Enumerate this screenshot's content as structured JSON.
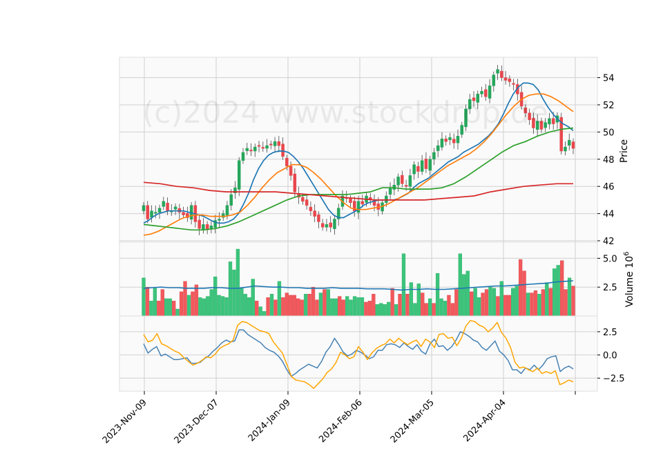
{
  "chart_data": {
    "type": "candlestick",
    "watermark": "(c)2024 www.stockdrop.de",
    "x_tick_labels": [
      "2023-Nov-09",
      "2023-Dec-07",
      "2024-Jan-09",
      "2024-Feb-06",
      "2024-Mar-05",
      "2024-Apr-04"
    ],
    "price_panel": {
      "ylabel": "Price",
      "ylim": [
        41.9,
        55.5
      ],
      "yticks": [
        42,
        44,
        46,
        48,
        50,
        52,
        54
      ],
      "candles_close": [
        44.6,
        43.6,
        44.2,
        44.1,
        44.4,
        44.9,
        44.2,
        44.2,
        44.5,
        44.1,
        43.9,
        43.7,
        44.6,
        43.4,
        42.9,
        43.2,
        42.8,
        43.1,
        43.5,
        43.6,
        44.0,
        44.6,
        45.4,
        45.9,
        47.9,
        48.5,
        48.8,
        48.6,
        48.9,
        49.0,
        48.8,
        49.0,
        49.1,
        49.3,
        49.0,
        48.2,
        47.5,
        46.8,
        45.6,
        45.2,
        44.9,
        44.6,
        44.2,
        43.8,
        43.4,
        43.0,
        43.2,
        43.0,
        43.6,
        44.4,
        45.3,
        45.1,
        44.8,
        44.2,
        44.9,
        44.7,
        45.3,
        45.0,
        44.6,
        44.3,
        44.8,
        45.3,
        45.9,
        46.1,
        46.7,
        46.2,
        46.0,
        46.8,
        47.6,
        47.1,
        47.9,
        47.3,
        48.0,
        48.5,
        49.0,
        49.5,
        49.3,
        49.6,
        49.2,
        49.7,
        50.5,
        51.7,
        52.4,
        52.3,
        52.8,
        53.0,
        52.6,
        53.4,
        54.2,
        54.6,
        54.0,
        53.8,
        53.7,
        53.5,
        52.8,
        51.9,
        51.4,
        50.9,
        50.3,
        50.8,
        50.2,
        50.7,
        51.0,
        50.6,
        51.2,
        48.6,
        48.9,
        49.4,
        48.8
      ],
      "ma_series": [
        {
          "color": "#1f77b4",
          "values": [
            43.3,
            43.5,
            43.8,
            44.0,
            44.1,
            44.2,
            44.2,
            44.2,
            44.2,
            44.1,
            44.0,
            43.9,
            43.8,
            43.6,
            43.4,
            43.3,
            43.3,
            43.4,
            43.6,
            44.0,
            44.7,
            45.5,
            46.5,
            47.3,
            47.9,
            48.3,
            48.5,
            48.6,
            48.6,
            48.5,
            48.2,
            47.8,
            47.3,
            46.7,
            46.1,
            45.5,
            44.9,
            44.3,
            43.9,
            43.7,
            43.7,
            43.9,
            44.1,
            44.3,
            44.6,
            44.8,
            44.9,
            45.0,
            45.0,
            45.0,
            45.0,
            45.1,
            45.3,
            45.5,
            45.9,
            46.2,
            46.4,
            46.6,
            46.9,
            47.2,
            47.5,
            47.8,
            48.0,
            48.2,
            48.5,
            48.7,
            48.9,
            49.1,
            49.4,
            49.7,
            50.1,
            50.6,
            51.3,
            52.1,
            52.8,
            53.3,
            53.6,
            53.6,
            53.5,
            53.1,
            52.4,
            51.8,
            51.3,
            50.9,
            50.6,
            50.4,
            50.1
          ]
        },
        {
          "color": "#ff7f0e",
          "values": [
            42.4,
            42.5,
            42.7,
            43.0,
            43.3,
            43.6,
            43.8,
            43.9,
            43.9,
            43.8,
            43.8,
            43.8,
            43.9,
            44.1,
            44.6,
            45.2,
            45.9,
            46.5,
            47.0,
            47.3,
            47.6,
            47.6,
            47.4,
            47.0,
            46.5,
            45.9,
            45.3,
            44.8,
            44.4,
            44.3,
            44.3,
            44.4,
            44.5,
            44.7,
            45.0,
            45.3,
            45.6,
            45.9,
            46.3,
            46.7,
            47.1,
            47.5,
            47.8,
            48.1,
            48.4,
            48.8,
            49.3,
            49.9,
            50.6,
            51.3,
            51.9,
            52.4,
            52.7,
            52.8,
            52.8,
            52.6,
            52.3,
            51.9,
            51.5
          ]
        },
        {
          "color": "#2ca02c",
          "values": [
            43.2,
            43.1,
            43.0,
            42.9,
            42.8,
            42.8,
            42.9,
            43.1,
            43.4,
            43.8,
            44.2,
            44.6,
            45.0,
            45.3,
            45.4,
            45.4,
            45.4,
            45.4,
            45.5,
            45.6,
            45.9,
            45.9,
            45.8,
            45.8,
            45.8,
            45.9,
            46.2,
            46.7,
            47.3,
            47.9,
            48.5,
            49.0,
            49.3,
            49.7,
            50.0,
            50.2,
            50.3
          ]
        },
        {
          "color": "#d62728",
          "values": [
            46.3,
            46.2,
            46.0,
            45.9,
            45.7,
            45.6,
            45.6,
            45.6,
            45.6,
            45.5,
            45.4,
            45.3,
            45.2,
            45.1,
            45.0,
            45.0,
            45.0,
            45.0,
            45.1,
            45.2,
            45.3,
            45.6,
            45.8,
            46.0,
            46.1,
            46.2,
            46.2
          ]
        }
      ]
    },
    "volume_panel": {
      "ylabel": "Volume  10^6",
      "ylim": [
        0,
        6.4
      ],
      "yticks": [
        2.5,
        5.0
      ],
      "ytick_labels": [
        "2.5",
        "5.0"
      ],
      "values": [
        3.3,
        2.5,
        1.3,
        2.4,
        1.3,
        2.3,
        1.5,
        1.5,
        1.3,
        0.6,
        2.1,
        3.0,
        1.8,
        2.1,
        2.7,
        1.6,
        1.5,
        1.7,
        2.3,
        3.4,
        1.8,
        1.7,
        1.6,
        4.7,
        4.0,
        5.8,
        2.4,
        1.9,
        1.6,
        3.2,
        1.3,
        0.8,
        0.4,
        1.6,
        1.9,
        1.4,
        3.0,
        1.6,
        2.0,
        1.8,
        1.8,
        1.5,
        1.4,
        1.9,
        1.9,
        2.5,
        1.4,
        2.0,
        2.3,
        2.3,
        1.5,
        1.5,
        1.7,
        1.4,
        1.7,
        1.4,
        1.7,
        1.6,
        1.6,
        1.2,
        1.3,
        1.9,
        1.0,
        1.1,
        1.0,
        1.2,
        2.4,
        1.0,
        1.9,
        5.4,
        1.9,
        2.9,
        1.1,
        2.8,
        2.0,
        1.1,
        1.5,
        1.1,
        3.7,
        1.5,
        1.3,
        1.8,
        1.1,
        2.3,
        5.4,
        3.6,
        3.9,
        2.1,
        2.4,
        1.6,
        2.0,
        2.3,
        2.5,
        2.4,
        1.7,
        3.0,
        1.8,
        1.8,
        2.4,
        2.6,
        4.9,
        3.9,
        2.0,
        2.0,
        2.2,
        1.9,
        2.3,
        2.9,
        2.4,
        4.1,
        4.4,
        4.8,
        2.3,
        3.3,
        2.6
      ],
      "colors": [
        "g",
        "r",
        "g",
        "g",
        "r",
        "r",
        "g",
        "g",
        "r",
        "g",
        "r",
        "r",
        "g",
        "r",
        "r",
        "g",
        "g",
        "g",
        "g",
        "g",
        "g",
        "g",
        "g",
        "g",
        "g",
        "g",
        "g",
        "g",
        "g",
        "g",
        "r",
        "g",
        "g",
        "r",
        "g",
        "r",
        "g",
        "r",
        "r",
        "r",
        "r",
        "r",
        "r",
        "g",
        "r",
        "r",
        "r",
        "g",
        "r",
        "g",
        "g",
        "g",
        "r",
        "r",
        "g",
        "g",
        "g",
        "g",
        "g",
        "r",
        "r",
        "r",
        "g",
        "g",
        "g",
        "g",
        "r",
        "g",
        "r",
        "g",
        "r",
        "g",
        "g",
        "g",
        "r",
        "r",
        "g",
        "r",
        "g",
        "g",
        "g",
        "r",
        "r",
        "r",
        "g",
        "g",
        "g",
        "r",
        "g",
        "g",
        "r",
        "r",
        "g",
        "g",
        "r",
        "g",
        "r",
        "r",
        "g",
        "g",
        "r",
        "r",
        "g",
        "r",
        "r",
        "g",
        "r",
        "g",
        "r",
        "g",
        "g",
        "r",
        "r",
        "g",
        "r"
      ],
      "ma_line": [
        2.4,
        2.45,
        2.5,
        2.45,
        2.45,
        2.4,
        2.4,
        2.4,
        2.45,
        2.45,
        2.4,
        2.4,
        2.5,
        2.6,
        2.55,
        2.5,
        2.5,
        2.45,
        2.45,
        2.4,
        2.4,
        2.4,
        2.45,
        2.4,
        2.4,
        2.4,
        2.35,
        2.35,
        2.35,
        2.3,
        2.25,
        2.3,
        2.3,
        2.35,
        2.3,
        2.3,
        2.35,
        2.4,
        2.45,
        2.5,
        2.55,
        2.6,
        2.6,
        2.65,
        2.7,
        2.75,
        2.8,
        2.85,
        2.95,
        3.0,
        3.05
      ]
    },
    "oscillator_panel": {
      "ylim": [
        -3.9,
        4.2
      ],
      "yticks": [
        -2.5,
        0.0,
        2.5
      ],
      "ytick_labels": [
        "−2.5",
        "0.0",
        "2.5"
      ],
      "series": [
        {
          "color": "#4682b4",
          "values": [
            1.2,
            0.2,
            0.6,
            0.9,
            -0.1,
            0.1,
            -0.2,
            -0.5,
            -0.5,
            -0.4,
            -0.3,
            -0.9,
            -0.9,
            -0.8,
            -0.4,
            -0.1,
            0.4,
            0.8,
            1.3,
            1.6,
            1.4,
            1.5,
            2.7,
            2.7,
            2.2,
            1.9,
            1.6,
            1.3,
            0.8,
            0.5,
            0.3,
            -0.1,
            -0.7,
            -1.6,
            -2.3,
            -2.0,
            -1.6,
            -1.3,
            -1.0,
            -1.2,
            -1.4,
            -0.7,
            0.3,
            0.9,
            1.8,
            1.1,
            0.3,
            -0.1,
            0.1,
            0.5,
            0.3,
            0.0,
            -0.4,
            -0.2,
            0.5,
            0.5,
            1.1,
            1.2,
            1.1,
            0.8,
            1.3,
            0.9,
            0.6,
            1.1,
            0.4,
            0.1,
            1.2,
            1.7,
            0.9,
            1.0,
            0.5,
            0.9,
            1.6,
            2.5,
            2.3,
            2.0,
            1.6,
            1.4,
            0.8,
            0.5,
            1.0,
            1.5,
            0.4,
            0.0,
            -0.6,
            -1.6,
            -1.6,
            -2.0,
            -1.4,
            -1.6,
            -1.1,
            -1.6,
            -1.1,
            -0.4,
            -0.2,
            -0.1,
            -1.8,
            -1.4,
            -1.2,
            -1.5
          ]
        },
        {
          "color": "#ffa500",
          "values": [
            2.2,
            1.4,
            1.6,
            2.3,
            1.2,
            1.0,
            0.7,
            0.4,
            0.2,
            -0.3,
            -0.7,
            -1.1,
            -0.9,
            -0.6,
            -0.2,
            -0.3,
            0.1,
            0.7,
            1.0,
            1.2,
            1.6,
            3.2,
            3.6,
            3.5,
            3.2,
            2.9,
            2.6,
            2.5,
            2.3,
            1.4,
            0.8,
            0.2,
            -1.0,
            -2.3,
            -2.7,
            -2.8,
            -2.9,
            -3.2,
            -3.6,
            -3.1,
            -2.6,
            -1.9,
            -1.5,
            -0.8,
            0.3,
            0.0,
            -0.4,
            -0.2,
            0.9,
            0.3,
            -0.5,
            0.2,
            0.7,
            1.0,
            1.2,
            1.7,
            1.3,
            1.8,
            1.4,
            1.1,
            1.4,
            1.6,
            0.9,
            1.7,
            1.4,
            0.8,
            2.2,
            2.3,
            1.8,
            1.9,
            1.0,
            1.8,
            3.1,
            3.7,
            3.6,
            3.2,
            3.0,
            2.5,
            2.9,
            3.5,
            2.4,
            1.8,
            0.8,
            -0.8,
            -1.4,
            -1.3,
            -1.6,
            -1.8,
            -1.4,
            -2.0,
            -1.8,
            -2.0,
            -1.7,
            -3.2,
            -3.0,
            -2.7,
            -2.9
          ]
        }
      ]
    }
  }
}
